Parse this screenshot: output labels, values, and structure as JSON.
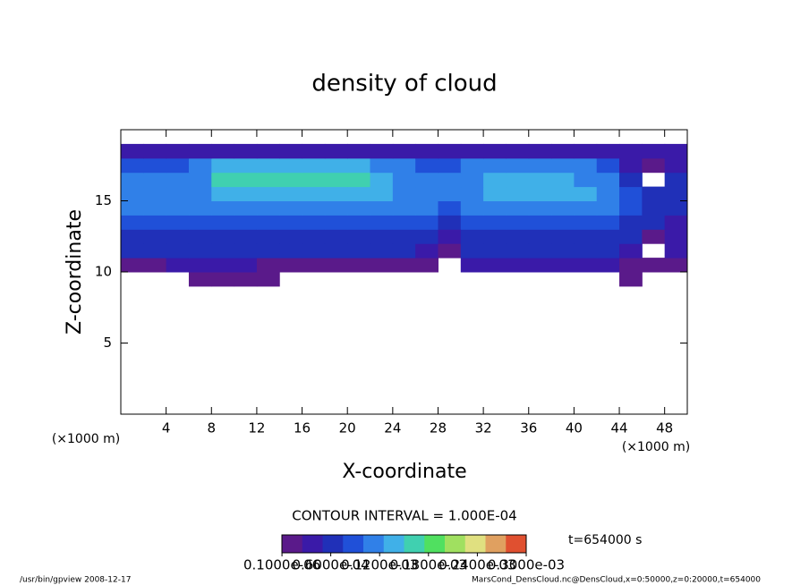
{
  "chart_data": {
    "type": "heatmap",
    "title": "density of cloud",
    "xlabel": "X-coordinate",
    "ylabel": "Z-coordinate",
    "xunit": "(×1000 m)",
    "yunit": "(×1000 m)",
    "contour_interval": "CONTOUR INTERVAL = 1.000E-04",
    "time": "t=654000 s",
    "footer_left": "/usr/bin/gpview  2008-12-17",
    "footer_right": "MarsCond_DensCloud.nc@DensCloud,x=0:50000,z=0:20000,t=654000",
    "xlim": [
      0,
      50
    ],
    "ylim": [
      0,
      20
    ],
    "xticks": [
      4,
      8,
      12,
      16,
      20,
      24,
      28,
      32,
      36,
      40,
      44,
      48
    ],
    "yticks": [
      5,
      10,
      15
    ],
    "x": [
      1,
      3,
      5,
      7,
      9,
      11,
      13,
      15,
      17,
      19,
      21,
      23,
      25,
      27,
      29,
      31,
      33,
      35,
      37,
      39,
      41,
      43,
      45,
      47,
      49
    ],
    "z": [
      9.5,
      10.5,
      11.5,
      12.5,
      13.5,
      14.5,
      15.5,
      16.5,
      17.5,
      18.5
    ],
    "values": [
      [
        0,
        0,
        0,
        1e-05,
        1e-05,
        1e-05,
        1e-05,
        0,
        0,
        0,
        0,
        0,
        0,
        0,
        0,
        0,
        0,
        0,
        0,
        0,
        0,
        0,
        1e-05,
        0,
        0
      ],
      [
        2e-05,
        2e-05,
        3e-05,
        3e-05,
        3e-05,
        3e-05,
        2e-05,
        2e-05,
        2e-05,
        2e-05,
        2e-05,
        2e-05,
        2e-05,
        1e-05,
        0,
        3e-05,
        3e-05,
        3e-05,
        3e-05,
        3e-05,
        3e-05,
        3e-05,
        2e-05,
        1e-05,
        2e-05
      ],
      [
        5e-05,
        5e-05,
        5e-05,
        5e-05,
        5e-05,
        5e-05,
        5e-05,
        5e-05,
        5e-05,
        5e-05,
        5e-05,
        5e-05,
        5e-05,
        4e-05,
        2e-05,
        5e-05,
        5e-05,
        5e-05,
        5e-05,
        5e-05,
        5e-05,
        5e-05,
        4e-05,
        0,
        3e-05
      ],
      [
        7e-05,
        7e-05,
        7e-05,
        7e-05,
        7e-05,
        7e-05,
        7e-05,
        7e-05,
        7e-05,
        7e-05,
        7e-05,
        7e-05,
        7e-05,
        6e-05,
        3e-05,
        7e-05,
        7e-05,
        7e-05,
        7e-05,
        7e-05,
        7e-05,
        7e-05,
        6e-05,
        1e-05,
        4e-05
      ],
      [
        8e-05,
        8e-05,
        8e-05,
        8e-05,
        9e-05,
        9e-05,
        9e-05,
        9e-05,
        9e-05,
        9e-05,
        9e-05,
        9e-05,
        8e-05,
        8e-05,
        7e-05,
        8e-05,
        9e-05,
        9e-05,
        9e-05,
        9e-05,
        9e-05,
        8e-05,
        7e-05,
        5e-05,
        4e-05
      ],
      [
        0.0001,
        0.0001,
        0.0001,
        0.0001,
        0.00012,
        0.00012,
        0.00012,
        0.00012,
        0.00012,
        0.00012,
        0.00012,
        0.00012,
        0.0001,
        0.0001,
        9e-05,
        0.0001,
        0.00011,
        0.00011,
        0.00011,
        0.00011,
        0.00011,
        0.0001,
        8e-05,
        7e-05,
        6e-05
      ],
      [
        0.00011,
        0.00011,
        0.00011,
        0.00012,
        0.00014,
        0.00014,
        0.00014,
        0.00014,
        0.00014,
        0.00014,
        0.00014,
        0.00013,
        0.00011,
        0.0001,
        0.0001,
        0.00011,
        0.00013,
        0.00013,
        0.00013,
        0.00013,
        0.00013,
        0.00011,
        8e-05,
        7e-05,
        7e-05
      ],
      [
        0.0001,
        0.0001,
        0.0001,
        0.00012,
        0.00016,
        0.00016,
        0.00016,
        0.00016,
        0.00016,
        0.00015,
        0.00015,
        0.00014,
        0.00011,
        0.0001,
        0.0001,
        0.00011,
        0.00013,
        0.00013,
        0.00013,
        0.00013,
        0.00012,
        0.0001,
        6e-05,
        0,
        6e-05
      ],
      [
        8e-05,
        8e-05,
        8e-05,
        0.0001,
        0.00014,
        0.00014,
        0.00014,
        0.00014,
        0.00014,
        0.00013,
        0.00013,
        0.00012,
        0.0001,
        8e-05,
        8e-05,
        0.0001,
        0.00011,
        0.00011,
        0.00011,
        0.00011,
        0.0001,
        8e-05,
        4e-05,
        2e-05,
        4e-05
      ],
      [
        3e-05,
        3e-05,
        3e-05,
        3e-05,
        3e-05,
        3e-05,
        3e-05,
        3e-05,
        3e-05,
        3e-05,
        3e-05,
        3e-05,
        3e-05,
        3e-05,
        3e-05,
        3e-05,
        3e-05,
        3e-05,
        3e-05,
        3e-05,
        3e-05,
        3e-05,
        3e-05,
        3e-05,
        3e-05
      ]
    ],
    "clim": [
      0,
      0.0003
    ],
    "colors": [
      "#5a1a8a",
      "#3a1aa8",
      "#2030b8",
      "#2050d8",
      "#3080e8",
      "#40b0e8",
      "#40d0b0",
      "#50e060",
      "#a0e060",
      "#e0e080",
      "#e0a060",
      "#e05030"
    ],
    "colorbar_ticks": [
      {
        "value": 1e-07,
        "label": "0.1000e-06"
      },
      {
        "value": 6e-05,
        "label": "0.6000e-04"
      },
      {
        "value": 0.00012,
        "label": "0.1200e-03"
      },
      {
        "value": 0.00018,
        "label": "0.1800e-03"
      },
      {
        "value": 0.00024,
        "label": "0.2400e-03"
      },
      {
        "value": 0.0003,
        "label": "0.3000e-03"
      }
    ]
  }
}
